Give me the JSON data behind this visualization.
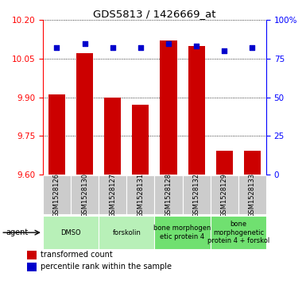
{
  "title": "GDS5813 / 1426669_at",
  "samples": [
    "GSM1528126",
    "GSM1528130",
    "GSM1528127",
    "GSM1528131",
    "GSM1528128",
    "GSM1528132",
    "GSM1528129",
    "GSM1528133"
  ],
  "red_values": [
    9.91,
    10.07,
    9.9,
    9.87,
    10.12,
    10.1,
    9.69,
    9.69
  ],
  "blue_values": [
    82,
    85,
    82,
    82,
    85,
    83,
    80,
    82
  ],
  "ymin": 9.6,
  "ymax": 10.2,
  "yticks": [
    9.6,
    9.75,
    9.9,
    10.05,
    10.2
  ],
  "right_yticks": [
    0,
    25,
    50,
    75,
    100
  ],
  "groups": [
    {
      "label": "DMSO",
      "start": 0,
      "end": 2,
      "color": "#b8f0b8"
    },
    {
      "label": "forskolin",
      "start": 2,
      "end": 4,
      "color": "#b8f0b8"
    },
    {
      "label": "bone morphogen\netic protein 4",
      "start": 4,
      "end": 6,
      "color": "#70e070"
    },
    {
      "label": "bone\nmorphogenetic\nprotein 4 + forskol",
      "start": 6,
      "end": 8,
      "color": "#70e070"
    }
  ],
  "bar_color": "#cc0000",
  "dot_color": "#0000cc",
  "bar_bottom": 9.6,
  "legend_red": "transformed count",
  "legend_blue": "percentile rank within the sample",
  "agent_label": "agent",
  "bar_width": 0.6
}
